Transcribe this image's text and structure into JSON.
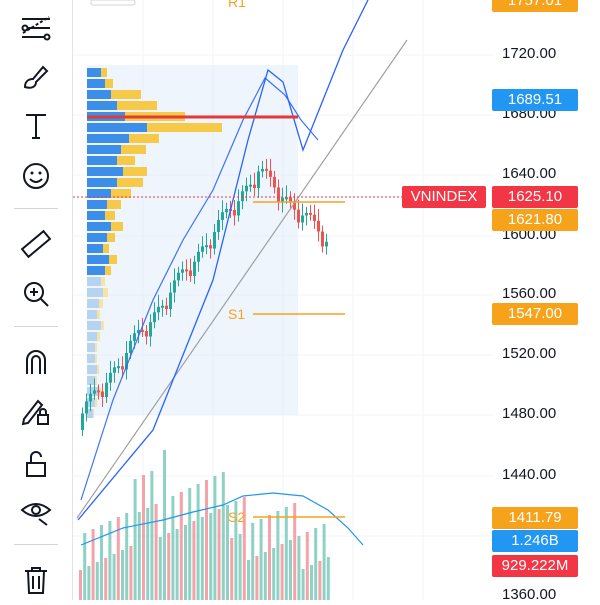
{
  "toolbar": {
    "tools": [
      {
        "name": "trend-lines-icon"
      },
      {
        "name": "brush-icon"
      },
      {
        "name": "text-icon"
      },
      {
        "name": "smiley-icon"
      },
      {
        "name": "ruler-icon"
      },
      {
        "name": "zoom-in-icon"
      },
      {
        "name": "magnet-icon"
      },
      {
        "name": "lock-drawings-icon"
      },
      {
        "name": "unlock-icon"
      },
      {
        "name": "eye-icon"
      },
      {
        "name": "trash-icon"
      }
    ]
  },
  "price_axis": {
    "ticks": [
      "1720.00",
      "1680.00",
      "1640.00",
      "1600.00",
      "1560.00",
      "1520.00",
      "1480.00",
      "1440.00",
      "1360.00"
    ]
  },
  "price_labels": {
    "top_partial": "1757.01",
    "line_level": "1689.51",
    "last_price": "1625.10",
    "orange_1": "1621.80",
    "s1_price": "1547.00",
    "s2_price": "1411.79",
    "volume_ma": "1.246B",
    "volume": "929.222M"
  },
  "symbol": "VNINDEX",
  "levels": {
    "r1": "R1",
    "s1": "S1",
    "s2": "S2"
  },
  "colors": {
    "up": "#26a69a",
    "down": "#ef5350",
    "accent_blue": "#2196f3",
    "orange": "#f7a21b",
    "red": "#f23645"
  }
}
